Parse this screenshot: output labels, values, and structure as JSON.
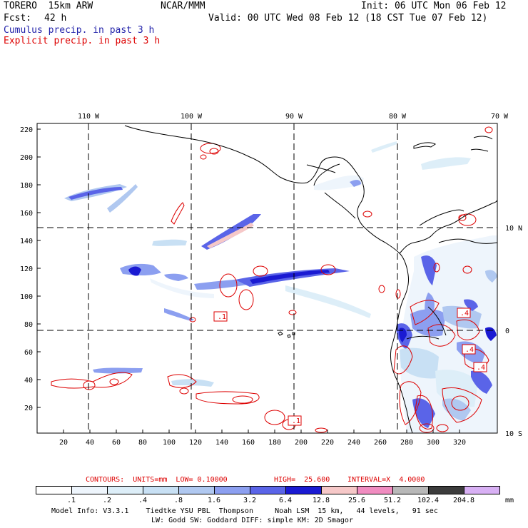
{
  "header": {
    "model": "TORERO  15km ARW",
    "center": "NCAR/MMM",
    "init": "Init: 06 UTC Mon 06 Feb 12",
    "fcst_label": "Fcst:",
    "fcst_value": "42 h",
    "valid": "Valid: 00 UTC Wed 08 Feb 12 (18 CST Tue 07 Feb 12)",
    "line_cumulus": "Cumulus precip. in past 3 h",
    "line_explicit": "Explicit precip. in past 3 h",
    "colors": {
      "cumulus": "#2222aa",
      "explicit": "#dd0000"
    }
  },
  "map": {
    "top_lon_labels": [
      "110 W",
      "100 W",
      "90 W",
      "80 W",
      "70 W"
    ],
    "left_y_labels": [
      "220",
      "200",
      "180",
      "160",
      "140",
      "120",
      "100",
      "80",
      "60",
      "40",
      "20"
    ],
    "bottom_x_labels": [
      "20",
      "40",
      "60",
      "80",
      "100",
      "120",
      "140",
      "160",
      "180",
      "200",
      "220",
      "240",
      "260",
      "280",
      "300",
      "320"
    ],
    "right_lat_labels": [
      "10 N",
      "0",
      "10 S"
    ],
    "contour_labels": [
      ".1",
      ".1",
      ".4",
      ".4",
      ".4"
    ]
  },
  "contours_line": {
    "prefix": "CONTOURS:  UNITS=mm  LOW= 0.10000",
    "high": "HIGH=  25.600",
    "interval": "INTERVAL=X  4.0000"
  },
  "legend": {
    "unit": "mm",
    "colors": [
      "#ffffff",
      "#eef5fc",
      "#ddeef8",
      "#c8e0f4",
      "#b0c8f0",
      "#8c9ff0",
      "#5a64e8",
      "#1a1ad2",
      "#f6c8c8",
      "#f08cc0",
      "#b8b8b8",
      "#3c3c3c",
      "#d8b0f4"
    ],
    "labels": [
      ".1",
      ".2",
      ".4",
      ".8",
      "1.6",
      "3.2",
      "6.4",
      "12.8",
      "25.6",
      "51.2",
      "102.4",
      "204.8"
    ]
  },
  "footer": {
    "line1": "Model Info: V3.3.1    Tiedtke YSU PBL  Thompson     Noah LSM  15 km,   44 levels,   91 sec",
    "line2": "LW: Godd SW: Goddard DIFF: simple KM: 2D Smagor"
  }
}
